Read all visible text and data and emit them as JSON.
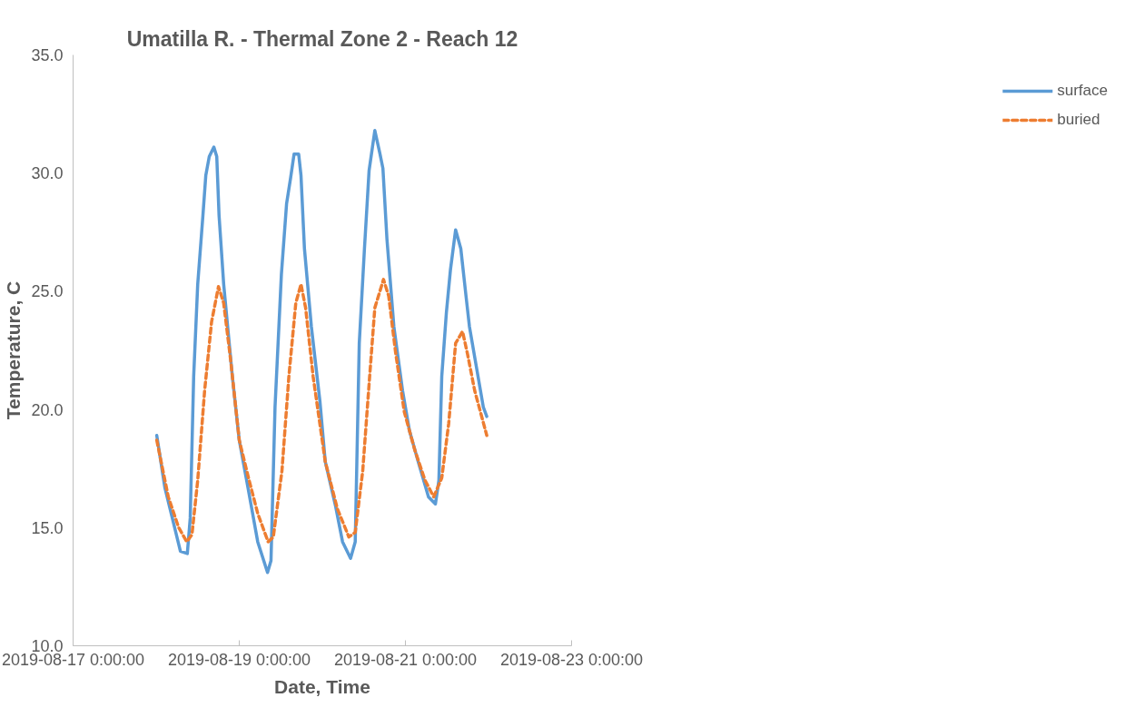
{
  "chart_data": {
    "type": "line",
    "title": "Umatilla R. - Thermal Zone 2 - Reach 12",
    "xlabel": "Date, Time",
    "ylabel": "Temperature, C",
    "xlim": [
      "2019-08-17",
      "2019-08-23"
    ],
    "xticks": [
      {
        "value": "2019-08-17",
        "label": "2019-08-17 0:00:00"
      },
      {
        "value": "2019-08-19",
        "label": "2019-08-19 0:00:00"
      },
      {
        "value": "2019-08-21",
        "label": "2019-08-21 0:00:00"
      },
      {
        "value": "2019-08-23",
        "label": "2019-08-23 0:00:00"
      }
    ],
    "ylim": [
      10,
      35
    ],
    "yticks": [
      {
        "value": 10,
        "label": "10.0"
      },
      {
        "value": 15,
        "label": "15.0"
      },
      {
        "value": 20,
        "label": "20.0"
      },
      {
        "value": 25,
        "label": "25.0"
      },
      {
        "value": 30,
        "label": "30.0"
      },
      {
        "value": 35,
        "label": "35.0"
      }
    ],
    "grid": false,
    "legend": "right",
    "marker": "none",
    "series": [
      {
        "name": "surface",
        "color": "#5b9bd5",
        "line_style": "solid",
        "x": [
          "2019-08-18T00:10",
          "2019-08-18T02:30",
          "2019-08-18T05:00",
          "2019-08-18T07:00",
          "2019-08-18T09:00",
          "2019-08-18T09:50",
          "2019-08-18T10:50",
          "2019-08-18T12:00",
          "2019-08-18T13:30",
          "2019-08-18T14:20",
          "2019-08-18T15:20",
          "2019-08-18T16:40",
          "2019-08-18T17:30",
          "2019-08-18T18:10",
          "2019-08-18T19:30",
          "2019-08-18T22:00",
          "2019-08-19T00:00",
          "2019-08-19T02:30",
          "2019-08-19T05:20",
          "2019-08-19T08:10",
          "2019-08-19T09:10",
          "2019-08-19T10:20",
          "2019-08-19T12:10",
          "2019-08-19T13:40",
          "2019-08-19T14:50",
          "2019-08-19T15:50",
          "2019-08-19T17:10",
          "2019-08-19T17:50",
          "2019-08-19T18:50",
          "2019-08-19T20:50",
          "2019-08-19T23:20",
          "2019-08-20T00:50",
          "2019-08-20T03:50",
          "2019-08-20T05:50",
          "2019-08-20T08:10",
          "2019-08-20T09:30",
          "2019-08-20T10:40",
          "2019-08-20T12:10",
          "2019-08-20T13:30",
          "2019-08-20T15:10",
          "2019-08-20T16:40",
          "2019-08-20T17:30",
          "2019-08-20T18:40",
          "2019-08-20T20:40",
          "2019-08-20T23:10",
          "2019-08-21T01:10",
          "2019-08-21T03:40",
          "2019-08-21T06:40",
          "2019-08-21T08:40",
          "2019-08-21T09:40",
          "2019-08-21T10:30",
          "2019-08-21T11:50",
          "2019-08-21T13:00",
          "2019-08-21T14:30",
          "2019-08-21T16:00",
          "2019-08-21T17:30",
          "2019-08-21T18:30",
          "2019-08-21T20:30",
          "2019-08-21T22:30",
          "2019-08-21T23:30"
        ],
        "values": [
          18.9,
          16.7,
          15.2,
          14.0,
          13.9,
          15.4,
          21.4,
          25.3,
          28.2,
          29.9,
          30.7,
          31.1,
          30.7,
          28.2,
          25.3,
          21.4,
          18.7,
          16.7,
          14.4,
          13.1,
          13.6,
          20.1,
          25.7,
          28.7,
          29.8,
          30.8,
          30.8,
          29.9,
          26.8,
          23.5,
          20.3,
          17.8,
          15.9,
          14.4,
          13.7,
          14.4,
          22.8,
          26.8,
          30.1,
          31.8,
          30.8,
          30.2,
          27.2,
          23.5,
          20.8,
          19.1,
          17.8,
          16.3,
          16.0,
          17.0,
          21.4,
          24.1,
          25.9,
          27.6,
          26.8,
          24.8,
          23.5,
          21.8,
          20.1,
          19.7
        ]
      },
      {
        "name": "buried",
        "color": "#ed7d31",
        "line_style": "dashed",
        "x": [
          "2019-08-18T00:10",
          "2019-08-18T03:30",
          "2019-08-18T06:30",
          "2019-08-18T08:50",
          "2019-08-18T10:20",
          "2019-08-18T12:00",
          "2019-08-18T14:00",
          "2019-08-18T16:00",
          "2019-08-18T18:00",
          "2019-08-18T19:30",
          "2019-08-18T21:30",
          "2019-08-19T00:00",
          "2019-08-19T02:30",
          "2019-08-19T05:20",
          "2019-08-19T08:20",
          "2019-08-19T09:50",
          "2019-08-19T12:20",
          "2019-08-19T14:20",
          "2019-08-19T16:20",
          "2019-08-19T17:50",
          "2019-08-19T19:10",
          "2019-08-19T21:20",
          "2019-08-20T00:50",
          "2019-08-20T04:20",
          "2019-08-20T07:40",
          "2019-08-20T09:30",
          "2019-08-20T11:40",
          "2019-08-20T13:40",
          "2019-08-20T15:10",
          "2019-08-20T17:40",
          "2019-08-20T19:10",
          "2019-08-20T21:10",
          "2019-08-20T23:40",
          "2019-08-21T02:40",
          "2019-08-21T05:40",
          "2019-08-21T08:10",
          "2019-08-21T10:30",
          "2019-08-21T12:30",
          "2019-08-21T14:30",
          "2019-08-21T16:30",
          "2019-08-21T18:00",
          "2019-08-21T20:00",
          "2019-08-21T23:30"
        ],
        "values": [
          18.7,
          16.3,
          15.0,
          14.4,
          14.7,
          17.0,
          20.8,
          23.7,
          25.2,
          24.5,
          22.1,
          18.7,
          17.2,
          15.6,
          14.4,
          14.6,
          17.4,
          21.4,
          24.5,
          25.3,
          24.3,
          21.4,
          17.8,
          15.8,
          14.6,
          14.8,
          17.4,
          21.4,
          24.3,
          25.5,
          24.8,
          22.4,
          19.9,
          18.3,
          17.0,
          16.3,
          17.1,
          19.4,
          22.8,
          23.3,
          22.3,
          20.8,
          18.9
        ]
      }
    ]
  }
}
